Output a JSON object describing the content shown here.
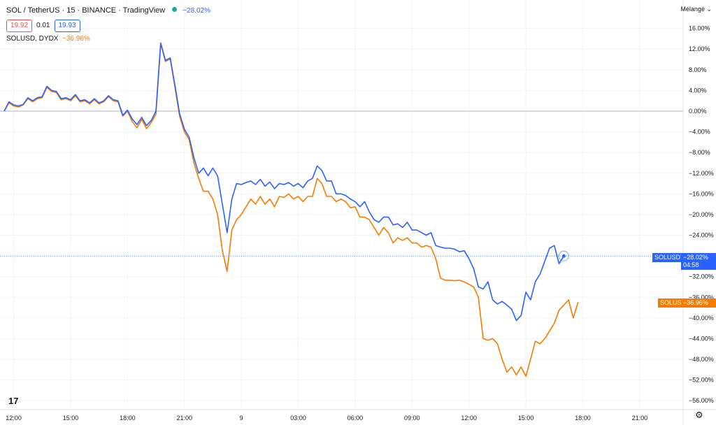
{
  "header": {
    "symbol_line": "SOL / TetherUS · 15 · BINANCE · TradingView",
    "change": "−28.02%",
    "bid": "19.92",
    "spread": "0.01",
    "ask": "19.93",
    "compare_label": "SOLUSD, DYDX",
    "compare_change": "−36.96%"
  },
  "scale_mode_label": "Mélangé ⌄",
  "price_tags": {
    "blue_name": "SOLUSDT",
    "blue_value": "−28.02%",
    "blue_countdown": "04:58",
    "orange_name": "SOLUSD",
    "orange_value": "−36.96%"
  },
  "logo_text": "17",
  "settings_icon": "gear-icon",
  "colors": {
    "blue": "#2962ff",
    "orange": "#f57c00",
    "grid": "#f0f3fa",
    "zero": "#b2b5be"
  },
  "chart_data": {
    "type": "line",
    "x_tick_labels": [
      "12:00",
      "15:00",
      "18:00",
      "21:00",
      "9",
      "03:00",
      "06:00",
      "09:00",
      "12:00",
      "15:00",
      "18:00",
      "21:00"
    ],
    "x_tick_index": [
      2,
      14,
      26,
      38,
      50,
      62,
      74,
      86,
      98,
      110,
      122,
      134
    ],
    "y_ticks": [
      "16.00%",
      "12.00%",
      "8.00%",
      "4.00%",
      "0.00%",
      "−4.00%",
      "−8.00%",
      "−12.00%",
      "−16.00%",
      "−20.00%",
      "−24.00%",
      "−28.00%",
      "−32.00%",
      "−36.00%",
      "−40.00%",
      "−44.00%",
      "−48.00%",
      "−52.00%",
      "−56.00%"
    ],
    "y_tick_values": [
      16,
      12,
      8,
      4,
      0,
      -4,
      -8,
      -12,
      -16,
      -20,
      -24,
      -28,
      -32,
      -36,
      -40,
      -44,
      -48,
      -52,
      -56
    ],
    "ylim": [
      -57,
      17.5
    ],
    "xlim": [
      0,
      140
    ],
    "grid": true,
    "series": [
      {
        "name": "SOLUSDT",
        "color": "#2962ff",
        "values": [
          0,
          1.8,
          1.2,
          1.0,
          1.3,
          2.6,
          2.0,
          2.6,
          2.8,
          4.8,
          4.0,
          3.8,
          2.4,
          2.6,
          2.2,
          3.2,
          2.0,
          2.2,
          1.6,
          2.4,
          1.6,
          2.0,
          3.0,
          2.2,
          2.0,
          -0.8,
          0.2,
          -1.5,
          -2.6,
          -1.2,
          -2.8,
          -1.8,
          0,
          13.2,
          9.8,
          10.3,
          5,
          -0.5,
          -3.5,
          -5,
          -9,
          -12,
          -11,
          -12.5,
          -11,
          -12.5,
          -18,
          -23.5,
          -17,
          -14,
          -14.2,
          -13.8,
          -13.5,
          -14.2,
          -13.2,
          -14.5,
          -13.7,
          -15,
          -14,
          -14.2,
          -13.8,
          -14.5,
          -14,
          -14.8,
          -13.5,
          -13,
          -10.6,
          -11.5,
          -13.5,
          -13.5,
          -16,
          -16,
          -16.3,
          -17,
          -17.5,
          -18.5,
          -17.5,
          -19.5,
          -21,
          -21.5,
          -20.5,
          -20.5,
          -22,
          -21.8,
          -22.5,
          -21.5,
          -23,
          -23,
          -23.5,
          -24,
          -23.5,
          -26,
          -26.3,
          -26.5,
          -26.5,
          -26.7,
          -27.2,
          -27,
          -28.5,
          -30.5,
          -34,
          -34.4,
          -33,
          -36.5,
          -37.3,
          -36.8,
          -37.5,
          -38.3,
          -40.5,
          -39.5,
          -35,
          -36.5,
          -33,
          -31.5,
          -29,
          -26.5,
          -26,
          -29.5,
          -28.02
        ]
      },
      {
        "name": "SOLUSD",
        "color": "#f57c00",
        "values": [
          0,
          1.6,
          1.0,
          0.8,
          1.2,
          2.4,
          1.8,
          2.4,
          2.6,
          4.6,
          3.8,
          3.6,
          2.2,
          2.4,
          2.0,
          3.0,
          1.8,
          2.0,
          1.4,
          2.2,
          1.4,
          1.8,
          2.8,
          2.0,
          1.8,
          -1.0,
          0,
          -2.0,
          -3.2,
          -1.6,
          -3.4,
          -2.2,
          -0.6,
          13.0,
          9.6,
          10.1,
          4.6,
          -1,
          -4,
          -5.5,
          -10,
          -13,
          -15.5,
          -15.5,
          -17,
          -20,
          -27,
          -31,
          -23,
          -21,
          -20,
          -18.5,
          -17,
          -18,
          -16.5,
          -18,
          -17,
          -18.5,
          -16.5,
          -16.7,
          -16,
          -17,
          -16.5,
          -17.5,
          -16.5,
          -16.5,
          -13,
          -14,
          -16.5,
          -16.5,
          -17.5,
          -17,
          -17.5,
          -18.7,
          -18.5,
          -20.5,
          -20.5,
          -21,
          -22.5,
          -24,
          -22.5,
          -23.5,
          -25.5,
          -24.5,
          -25,
          -24.5,
          -25.5,
          -25.5,
          -26.3,
          -26,
          -26.3,
          -28.5,
          -32.3,
          -32.7,
          -32.7,
          -32.8,
          -32.7,
          -33,
          -33.5,
          -34,
          -36,
          -44,
          -44.3,
          -44,
          -45,
          -48,
          -50.5,
          -49.5,
          -51,
          -49.5,
          -51.3,
          -48,
          -44.5,
          -45,
          -44,
          -42.5,
          -41,
          -38.5,
          -37.5,
          -36.5,
          -40,
          -36.96
        ]
      }
    ]
  }
}
